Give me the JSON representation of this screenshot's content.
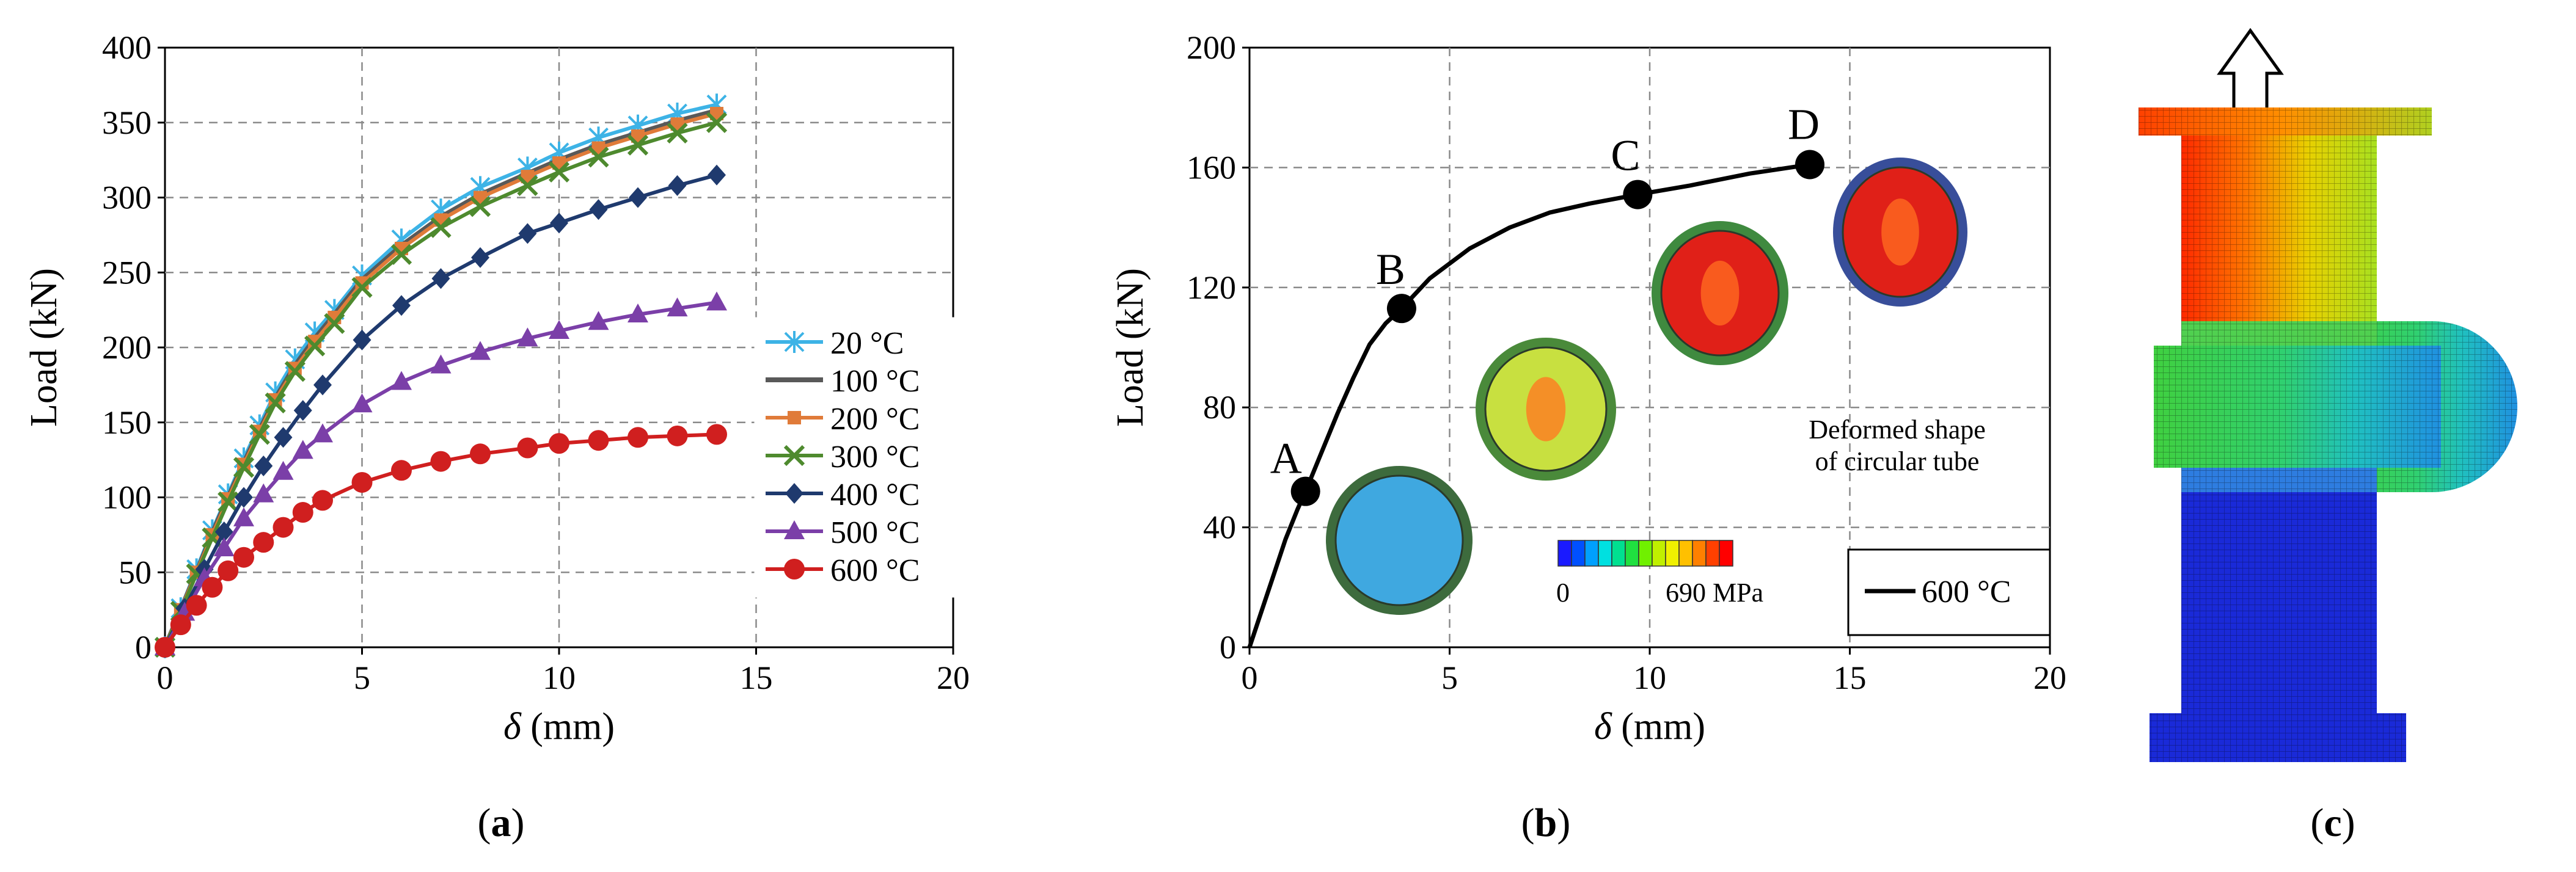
{
  "chart_data": [
    {
      "type": "line",
      "panel": "a",
      "xlabel_symbol": "δ",
      "xlabel_unit": "(mm)",
      "ylabel": "Load (kN)",
      "xlim": [
        0,
        20
      ],
      "ylim": [
        0,
        400
      ],
      "xticks": [
        0,
        5,
        10,
        15,
        20
      ],
      "yticks": [
        0,
        50,
        100,
        150,
        200,
        250,
        300,
        350,
        400
      ],
      "grid": true,
      "legend_position": "right",
      "series": [
        {
          "name": "20 °C",
          "color": "#3db3e6",
          "marker": "star",
          "x": [
            0,
            0.4,
            0.8,
            1.2,
            1.6,
            2.0,
            2.4,
            2.8,
            3.3,
            3.8,
            4.3,
            5,
            6,
            7,
            8,
            9.2,
            10,
            11,
            12,
            13,
            14
          ],
          "y": [
            0,
            26,
            52,
            78,
            102,
            126,
            148,
            170,
            192,
            210,
            225,
            248,
            272,
            292,
            307,
            320,
            330,
            340,
            348,
            356,
            362
          ]
        },
        {
          "name": "100 °C",
          "color": "#595959",
          "marker": "none",
          "x": [
            0,
            0.4,
            0.8,
            1.2,
            1.6,
            2.0,
            2.4,
            2.8,
            3.3,
            3.8,
            4.3,
            5,
            6,
            7,
            8,
            9.2,
            10,
            11,
            12,
            13,
            14
          ],
          "y": [
            0,
            25,
            50,
            76,
            100,
            123,
            145,
            166,
            188,
            206,
            222,
            245,
            268,
            287,
            302,
            316,
            325,
            335,
            343,
            351,
            358
          ]
        },
        {
          "name": "200 °C",
          "color": "#e07b39",
          "marker": "square",
          "x": [
            0,
            0.4,
            0.8,
            1.2,
            1.6,
            2.0,
            2.4,
            2.8,
            3.3,
            3.8,
            4.3,
            5,
            6,
            7,
            8,
            9.2,
            10,
            11,
            12,
            13,
            14
          ],
          "y": [
            0,
            25,
            50,
            75,
            99,
            122,
            144,
            165,
            186,
            204,
            220,
            243,
            266,
            285,
            300,
            314,
            323,
            333,
            341,
            349,
            356
          ]
        },
        {
          "name": "300 °C",
          "color": "#4e8a2e",
          "marker": "x",
          "x": [
            0,
            0.4,
            0.8,
            1.2,
            1.6,
            2.0,
            2.4,
            2.8,
            3.3,
            3.8,
            4.3,
            5,
            6,
            7,
            8,
            9.2,
            10,
            11,
            12,
            13,
            14
          ],
          "y": [
            0,
            24,
            49,
            73,
            97,
            120,
            142,
            163,
            184,
            201,
            216,
            240,
            262,
            280,
            294,
            308,
            317,
            327,
            335,
            343,
            350
          ]
        },
        {
          "name": "400 °C",
          "color": "#1f3a6e",
          "marker": "diamond",
          "x": [
            0,
            0.5,
            1.0,
            1.5,
            2.0,
            2.5,
            3.0,
            3.5,
            4.0,
            5,
            6,
            7,
            8,
            9.2,
            10,
            11,
            12,
            13,
            14
          ],
          "y": [
            0,
            26,
            52,
            77,
            100,
            121,
            140,
            158,
            175,
            205,
            228,
            246,
            260,
            276,
            283,
            292,
            300,
            308,
            315
          ]
        },
        {
          "name": "500 °C",
          "color": "#7b3fa8",
          "marker": "triangle",
          "x": [
            0,
            0.5,
            1.0,
            1.5,
            2.0,
            2.5,
            3.0,
            3.5,
            4.0,
            5,
            6,
            7,
            8,
            9.2,
            10,
            11,
            12,
            13,
            14
          ],
          "y": [
            0,
            23,
            46,
            66,
            86,
            102,
            117,
            131,
            142,
            162,
            177,
            188,
            197,
            206,
            211,
            217,
            222,
            226,
            230
          ]
        },
        {
          "name": "600 °C",
          "color": "#d01f1f",
          "marker": "circle",
          "x": [
            0,
            0.4,
            0.8,
            1.2,
            1.6,
            2.0,
            2.5,
            3.0,
            3.5,
            4.0,
            5,
            6,
            7,
            8,
            9.2,
            10,
            11,
            12,
            13,
            14
          ],
          "y": [
            0,
            15,
            28,
            40,
            51,
            60,
            70,
            80,
            90,
            98,
            110,
            118,
            124,
            129,
            133,
            136,
            138,
            140,
            141,
            142
          ]
        }
      ]
    },
    {
      "type": "line",
      "panel": "b",
      "xlabel_symbol": "δ",
      "xlabel_unit": "(mm)",
      "ylabel": "Load (kN)",
      "xlim": [
        0,
        20
      ],
      "ylim": [
        0,
        200
      ],
      "xticks": [
        0,
        5,
        10,
        15,
        20
      ],
      "yticks": [
        0,
        40,
        80,
        120,
        160,
        200
      ],
      "grid": true,
      "legend_position": "bottom-right",
      "series": [
        {
          "name": "600 °C",
          "color": "#000000",
          "x": [
            0,
            0.3,
            0.6,
            0.9,
            1.2,
            1.4,
            1.8,
            2.2,
            2.6,
            3.0,
            3.4,
            3.8,
            4.5,
            5.5,
            6.5,
            7.5,
            8.5,
            9.7,
            11,
            12.5,
            14
          ],
          "y": [
            0,
            12,
            24,
            36,
            46,
            52,
            65,
            78,
            90,
            101,
            108,
            113,
            123,
            133,
            140,
            145,
            148,
            151,
            154,
            158,
            161
          ]
        }
      ],
      "points": [
        {
          "label": "A",
          "x": 1.4,
          "y": 52
        },
        {
          "label": "B",
          "x": 3.8,
          "y": 113
        },
        {
          "label": "C",
          "x": 9.7,
          "y": 151
        },
        {
          "label": "D",
          "x": 14,
          "y": 161
        }
      ],
      "annotation_line1": "Deformed shape",
      "annotation_line2": "of circular tube",
      "colorbar_min": "0",
      "colorbar_max": "690 MPa",
      "colorbar_colors": [
        "#1a1aff",
        "#0050ff",
        "#00a0ff",
        "#00e0e0",
        "#00e090",
        "#20e040",
        "#70f000",
        "#c0f000",
        "#f0f000",
        "#ffc000",
        "#ff8000",
        "#ff4000",
        "#ff0000"
      ]
    }
  ],
  "captions": {
    "a": "a",
    "b": "b",
    "c": "c"
  }
}
